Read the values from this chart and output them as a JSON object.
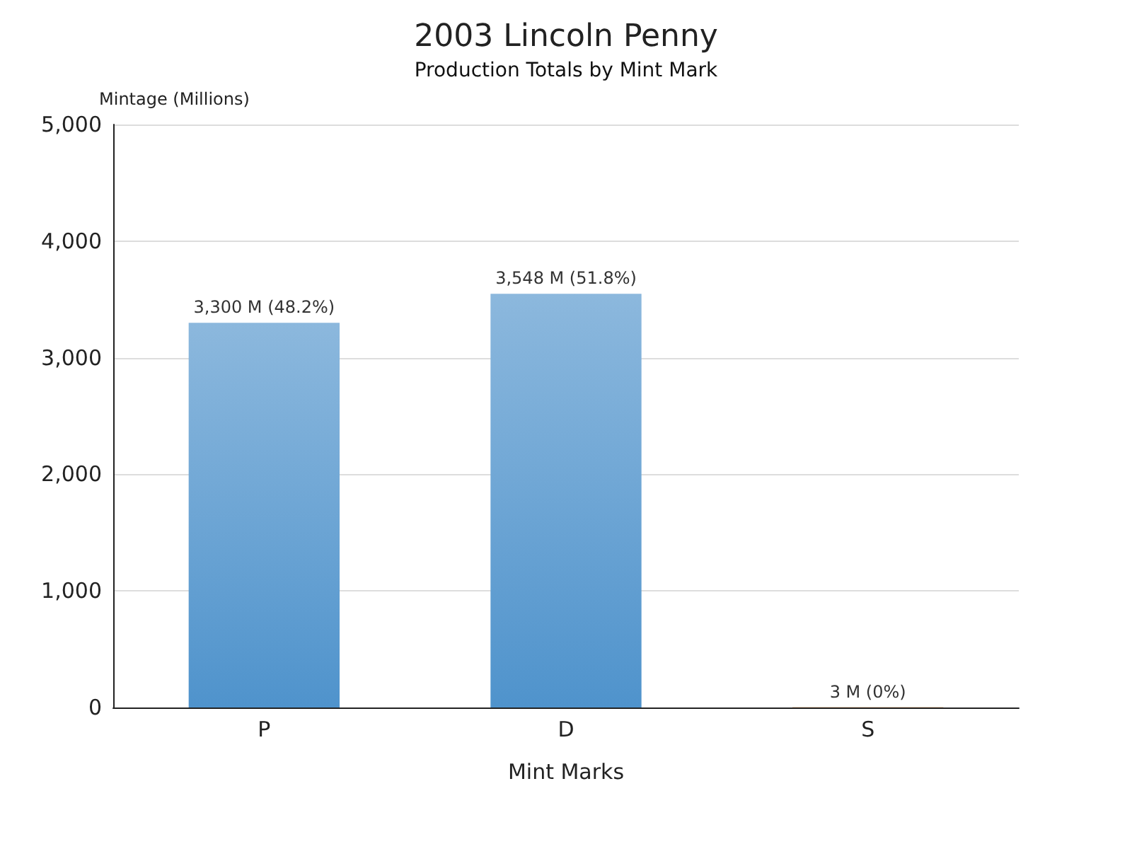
{
  "chart_data": {
    "type": "bar",
    "title": "2003 Lincoln Penny",
    "subtitle": "Production Totals by Mint Mark",
    "xlabel": "Mint Marks",
    "ylabel": "Mintage (Millions)",
    "categories": [
      "P",
      "D",
      "S"
    ],
    "values": [
      3300,
      3548,
      3
    ],
    "colors": [
      "#4f93cc",
      "#4f93cc",
      "#e0a070"
    ],
    "value_labels": [
      "3,300 M (48.2%)",
      "3,548 M (51.8%)",
      "3 M (0%)"
    ],
    "ylim": [
      0,
      5000
    ],
    "yticks": [
      {
        "value": 0,
        "label": "0"
      },
      {
        "value": 1000,
        "label": "1,000"
      },
      {
        "value": 2000,
        "label": "2,000"
      },
      {
        "value": 3000,
        "label": "3,000"
      },
      {
        "value": 4000,
        "label": "4,000"
      },
      {
        "value": 5000,
        "label": "5,000"
      }
    ],
    "grid": "y"
  }
}
